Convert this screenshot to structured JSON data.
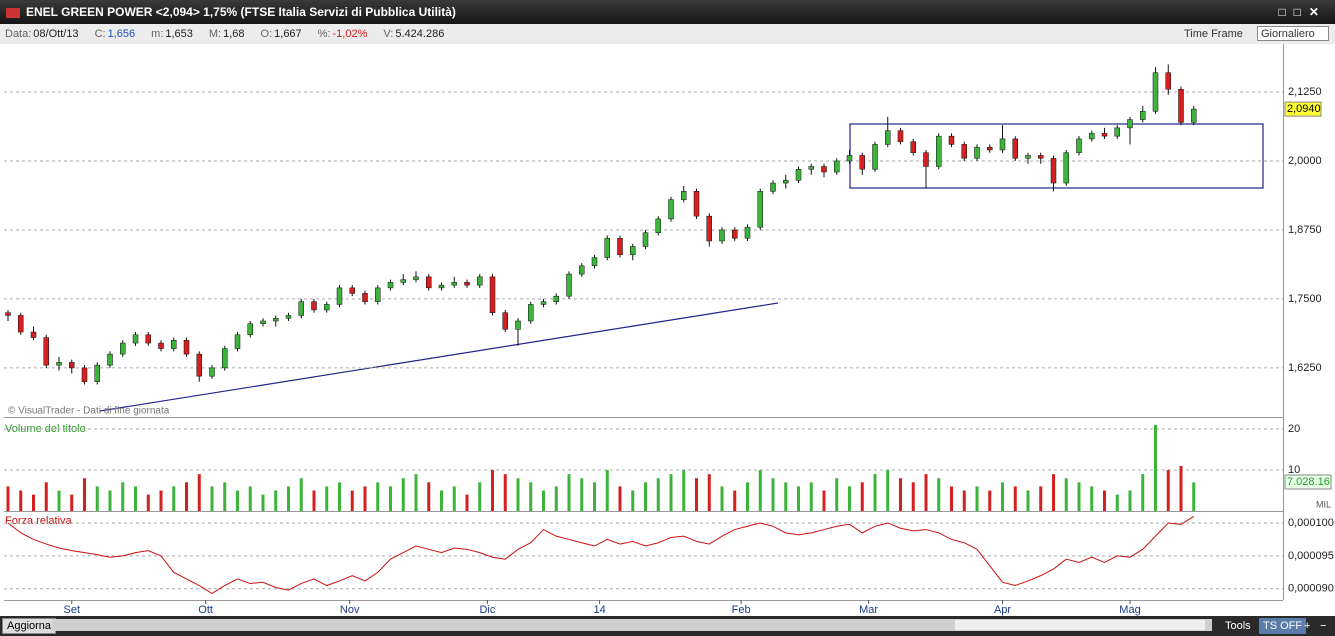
{
  "window": {
    "title": "ENEL GREEN POWER <2,094> 1,75%  (FTSE Italia Servizi di Pubblica Utilità)"
  },
  "info_bar": {
    "fields": [
      {
        "label": "Data:",
        "value": "08/Ott/13"
      },
      {
        "label": "C:",
        "value": "1,656"
      },
      {
        "label": "m:",
        "value": "1,653"
      },
      {
        "label": "M:",
        "value": "1,68"
      },
      {
        "label": "O:",
        "value": "1,667"
      },
      {
        "label": "%:",
        "value": "-1,02%"
      },
      {
        "label": "V:",
        "value": "5.424.286"
      }
    ],
    "time_frame_label": "Time Frame",
    "time_frame": "Giornaliero"
  },
  "panels": {
    "price": {
      "type": "candlestick",
      "watermark": "© VisualTrader - Dati di fine giornata",
      "ylim": [
        1.536,
        2.212
      ],
      "yticks": [
        {
          "value": 2.125,
          "label": "2,1250"
        },
        {
          "value": 2.0,
          "label": "2,0000"
        },
        {
          "value": 1.875,
          "label": "1,8750"
        },
        {
          "value": 1.75,
          "label": "1,7500"
        },
        {
          "value": 1.625,
          "label": "1,6250"
        }
      ],
      "last_price": {
        "value": 2.094,
        "label": "2,0940"
      },
      "up_color": "#3cb43c",
      "down_color": "#d42020",
      "candles": [
        [
          1.725,
          1.73,
          1.71,
          1.72
        ],
        [
          1.72,
          1.725,
          1.685,
          1.69
        ],
        [
          1.69,
          1.7,
          1.675,
          1.68
        ],
        [
          1.68,
          1.685,
          1.625,
          1.63
        ],
        [
          1.63,
          1.645,
          1.62,
          1.635
        ],
        [
          1.635,
          1.64,
          1.615,
          1.625
        ],
        [
          1.625,
          1.63,
          1.595,
          1.6
        ],
        [
          1.6,
          1.635,
          1.595,
          1.63
        ],
        [
          1.63,
          1.655,
          1.625,
          1.65
        ],
        [
          1.65,
          1.675,
          1.645,
          1.67
        ],
        [
          1.67,
          1.69,
          1.665,
          1.685
        ],
        [
          1.685,
          1.69,
          1.665,
          1.67
        ],
        [
          1.67,
          1.675,
          1.655,
          1.66
        ],
        [
          1.66,
          1.68,
          1.655,
          1.675
        ],
        [
          1.675,
          1.68,
          1.645,
          1.65
        ],
        [
          1.65,
          1.655,
          1.6,
          1.61
        ],
        [
          1.61,
          1.63,
          1.605,
          1.625
        ],
        [
          1.625,
          1.665,
          1.62,
          1.66
        ],
        [
          1.66,
          1.69,
          1.655,
          1.685
        ],
        [
          1.685,
          1.71,
          1.68,
          1.705
        ],
        [
          1.705,
          1.715,
          1.7,
          1.71
        ],
        [
          1.71,
          1.72,
          1.7,
          1.715
        ],
        [
          1.715,
          1.725,
          1.71,
          1.72
        ],
        [
          1.72,
          1.75,
          1.715,
          1.745
        ],
        [
          1.745,
          1.75,
          1.725,
          1.73
        ],
        [
          1.73,
          1.745,
          1.725,
          1.74
        ],
        [
          1.74,
          1.775,
          1.735,
          1.77
        ],
        [
          1.77,
          1.775,
          1.755,
          1.76
        ],
        [
          1.76,
          1.765,
          1.74,
          1.745
        ],
        [
          1.745,
          1.775,
          1.74,
          1.77
        ],
        [
          1.77,
          1.785,
          1.765,
          1.78
        ],
        [
          1.78,
          1.795,
          1.775,
          1.785
        ],
        [
          1.785,
          1.8,
          1.78,
          1.79
        ],
        [
          1.79,
          1.795,
          1.765,
          1.77
        ],
        [
          1.77,
          1.78,
          1.765,
          1.775
        ],
        [
          1.775,
          1.79,
          1.77,
          1.78
        ],
        [
          1.78,
          1.785,
          1.77,
          1.775
        ],
        [
          1.775,
          1.795,
          1.77,
          1.79
        ],
        [
          1.79,
          1.795,
          1.72,
          1.725
        ],
        [
          1.725,
          1.73,
          1.69,
          1.695
        ],
        [
          1.695,
          1.715,
          1.665,
          1.71
        ],
        [
          1.71,
          1.745,
          1.705,
          1.74
        ],
        [
          1.74,
          1.75,
          1.735,
          1.745
        ],
        [
          1.745,
          1.76,
          1.74,
          1.755
        ],
        [
          1.755,
          1.8,
          1.75,
          1.795
        ],
        [
          1.795,
          1.815,
          1.79,
          1.81
        ],
        [
          1.81,
          1.83,
          1.805,
          1.825
        ],
        [
          1.825,
          1.865,
          1.82,
          1.86
        ],
        [
          1.86,
          1.865,
          1.825,
          1.83
        ],
        [
          1.83,
          1.85,
          1.82,
          1.845
        ],
        [
          1.845,
          1.875,
          1.84,
          1.87
        ],
        [
          1.87,
          1.9,
          1.865,
          1.895
        ],
        [
          1.895,
          1.935,
          1.89,
          1.93
        ],
        [
          1.93,
          1.955,
          1.925,
          1.945
        ],
        [
          1.945,
          1.95,
          1.895,
          1.9
        ],
        [
          1.9,
          1.905,
          1.845,
          1.855
        ],
        [
          1.855,
          1.88,
          1.85,
          1.875
        ],
        [
          1.875,
          1.88,
          1.855,
          1.86
        ],
        [
          1.86,
          1.885,
          1.855,
          1.88
        ],
        [
          1.88,
          1.95,
          1.875,
          1.945
        ],
        [
          1.945,
          1.965,
          1.94,
          1.96
        ],
        [
          1.96,
          1.975,
          1.95,
          1.965
        ],
        [
          1.965,
          1.99,
          1.96,
          1.985
        ],
        [
          1.985,
          1.995,
          1.975,
          1.99
        ],
        [
          1.99,
          1.995,
          1.97,
          1.98
        ],
        [
          1.98,
          2.005,
          1.975,
          2.0
        ],
        [
          2.0,
          2.02,
          1.995,
          2.01
        ],
        [
          2.01,
          2.015,
          1.975,
          1.985
        ],
        [
          1.985,
          2.035,
          1.98,
          2.03
        ],
        [
          2.03,
          2.08,
          2.025,
          2.055
        ],
        [
          2.055,
          2.06,
          2.03,
          2.035
        ],
        [
          2.035,
          2.04,
          2.01,
          2.015
        ],
        [
          2.015,
          2.02,
          1.95,
          1.99
        ],
        [
          1.99,
          2.05,
          1.985,
          2.045
        ],
        [
          2.045,
          2.05,
          2.025,
          2.03
        ],
        [
          2.03,
          2.035,
          2.0,
          2.005
        ],
        [
          2.005,
          2.03,
          2.0,
          2.025
        ],
        [
          2.025,
          2.03,
          2.015,
          2.02
        ],
        [
          2.02,
          2.065,
          2.015,
          2.04
        ],
        [
          2.04,
          2.045,
          2.0,
          2.005
        ],
        [
          2.005,
          2.015,
          1.995,
          2.01
        ],
        [
          2.01,
          2.015,
          1.995,
          2.005
        ],
        [
          2.005,
          2.01,
          1.945,
          1.96
        ],
        [
          1.96,
          2.02,
          1.955,
          2.015
        ],
        [
          2.015,
          2.045,
          2.01,
          2.04
        ],
        [
          2.04,
          2.055,
          2.035,
          2.05
        ],
        [
          2.05,
          2.06,
          2.04,
          2.045
        ],
        [
          2.045,
          2.065,
          2.04,
          2.06
        ],
        [
          2.06,
          2.08,
          2.03,
          2.075
        ],
        [
          2.075,
          2.1,
          2.07,
          2.09
        ],
        [
          2.09,
          2.17,
          2.085,
          2.16
        ],
        [
          2.16,
          2.175,
          2.12,
          2.13
        ],
        [
          2.13,
          2.135,
          2.065,
          2.07
        ],
        [
          2.07,
          2.1,
          2.065,
          2.094
        ]
      ]
    },
    "volume": {
      "type": "bar",
      "label": "Volume del titolo",
      "ylim": [
        0,
        22.7
      ],
      "yticks": [
        20,
        10
      ],
      "last_label": "7.028.16",
      "unit": "MIL",
      "values": [
        6,
        5,
        4,
        7,
        5,
        4,
        8,
        6,
        5,
        7,
        6,
        4,
        5,
        6,
        7,
        9,
        6,
        7,
        5,
        6,
        4,
        5,
        6,
        8,
        5,
        6,
        7,
        5,
        6,
        7,
        6,
        8,
        9,
        7,
        5,
        6,
        4,
        7,
        10,
        9,
        8,
        7,
        5,
        6,
        9,
        8,
        7,
        10,
        6,
        5,
        7,
        8,
        9,
        10,
        8,
        9,
        6,
        5,
        7,
        10,
        8,
        7,
        6,
        7,
        5,
        8,
        6,
        7,
        9,
        10,
        8,
        7,
        9,
        8,
        6,
        5,
        6,
        5,
        7,
        6,
        5,
        6,
        9,
        8,
        7,
        6,
        5,
        4,
        5,
        9,
        21,
        10,
        11,
        7
      ]
    },
    "relative_strength": {
      "type": "line",
      "label": "Forza relativa",
      "color": "#cc1010",
      "ylim": [
        8.83e-05,
        0.00010167
      ],
      "yticks": [
        {
          "value": 0.0001,
          "label": "0,000100"
        },
        {
          "value": 9.5e-05,
          "label": "0,000095"
        },
        {
          "value": 9e-05,
          "label": "0,000090"
        }
      ],
      "values": [
        0.0001,
        9.85e-05,
        9.75e-05,
        9.68e-05,
        9.62e-05,
        9.58e-05,
        9.55e-05,
        9.52e-05,
        9.48e-05,
        9.5e-05,
        9.55e-05,
        9.58e-05,
        9.5e-05,
        9.25e-05,
        9.15e-05,
        9.05e-05,
        8.93e-05,
        9.05e-05,
        9.15e-05,
        9.08e-05,
        9.1e-05,
        9.02e-05,
        8.98e-05,
        9.08e-05,
        9.15e-05,
        9.05e-05,
        9.12e-05,
        9.2e-05,
        9.12e-05,
        9.25e-05,
        9.45e-05,
        9.55e-05,
        9.65e-05,
        9.6e-05,
        9.55e-05,
        9.62e-05,
        9.6e-05,
        9.55e-05,
        9.48e-05,
        9.45e-05,
        9.6e-05,
        9.7e-05,
        9.9e-05,
        9.8e-05,
        9.75e-05,
        9.7e-05,
        9.65e-05,
        9.75e-05,
        9.68e-05,
        9.72e-05,
        9.65e-05,
        9.7e-05,
        9.78e-05,
        9.8e-05,
        9.72e-05,
        9.68e-05,
        9.8e-05,
        9.9e-05,
        9.95e-05,
        0.0001,
        9.95e-05,
        9.85e-05,
        9.82e-05,
        9.85e-05,
        9.9e-05,
        9.95e-05,
        9.98e-05,
        9.85e-05,
        9.95e-05,
        0.0001,
        9.92e-05,
        9.88e-05,
        9.9e-05,
        9.85e-05,
        9.75e-05,
        9.7e-05,
        9.6e-05,
        9.35e-05,
        9.1e-05,
        9.05e-05,
        9.12e-05,
        9.2e-05,
        9.3e-05,
        9.45e-05,
        9.4e-05,
        9.48e-05,
        9.4e-05,
        9.5e-05,
        9.48e-05,
        9.6e-05,
        9.8e-05,
        0.0001,
        9.98e-05,
        0.000101
      ]
    }
  },
  "x_axis": {
    "labels": [
      {
        "label": "Set",
        "at": 5
      },
      {
        "label": "Ott",
        "at": 15.5
      },
      {
        "label": "Nov",
        "at": 26.8
      },
      {
        "label": "Dic",
        "at": 37.6
      },
      {
        "label": "14",
        "at": 46.4
      },
      {
        "label": "Feb",
        "at": 57.5
      },
      {
        "label": "Mar",
        "at": 67.5
      },
      {
        "label": "Apr",
        "at": 78
      },
      {
        "label": "Mag",
        "at": 88
      }
    ]
  },
  "status_bar": {
    "refresh": "Aggiorna",
    "tools": "Tools",
    "ts": "TS OFF",
    "plus": "+",
    "minus": "−"
  }
}
